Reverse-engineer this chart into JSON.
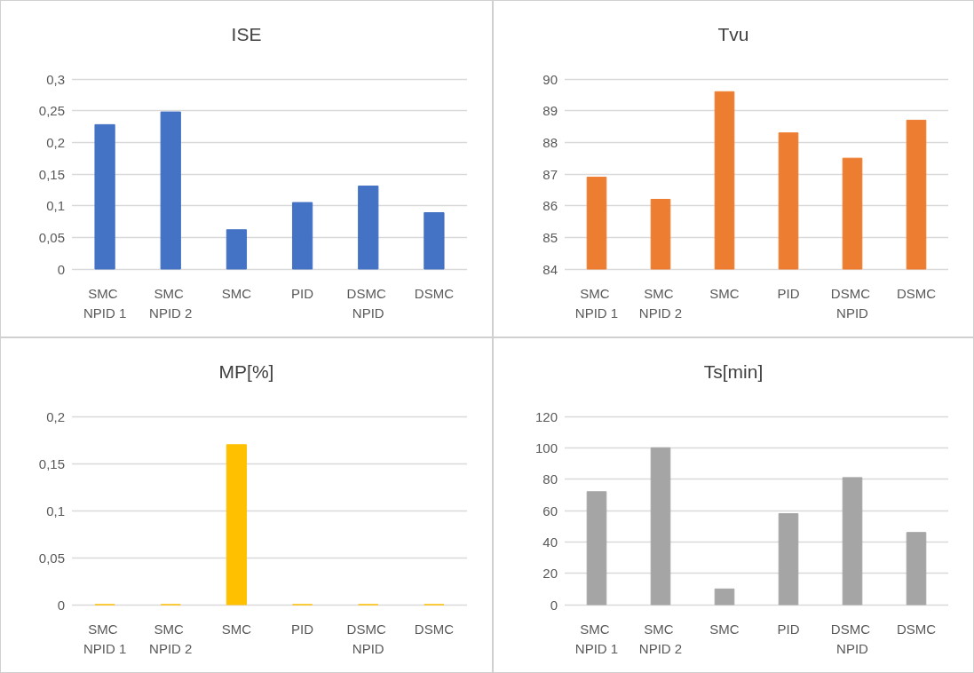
{
  "chart_data": [
    {
      "type": "bar",
      "title": "ISE",
      "categories": [
        "SMC NPID 1",
        "SMC NPID 2",
        "SMC",
        "PID",
        "DSMC NPID",
        "DSMC"
      ],
      "values": [
        0.228,
        0.248,
        0.062,
        0.105,
        0.131,
        0.089
      ],
      "color": "#4472c4",
      "ylim": [
        0,
        0.3
      ],
      "yticks": [
        0,
        {
          "value": 0.05,
          "label": "0,05"
        },
        {
          "value": 0.1,
          "label": "0,1"
        },
        {
          "value": 0.15,
          "label": "0,15"
        },
        {
          "value": 0.2,
          "label": "0,2"
        },
        {
          "value": 0.25,
          "label": "0,25"
        },
        {
          "value": 0.3,
          "label": "0,3"
        }
      ],
      "grid": "y"
    },
    {
      "type": "bar",
      "title": "Tvu",
      "categories": [
        "SMC NPID 1",
        "SMC NPID 2",
        "SMC",
        "PID",
        "DSMC NPID",
        "DSMC"
      ],
      "values": [
        86.9,
        86.2,
        89.6,
        88.3,
        87.5,
        88.7
      ],
      "color": "#ed7d31",
      "ylim": [
        84,
        90
      ],
      "yticks": [
        84,
        85,
        86,
        87,
        88,
        89,
        90
      ],
      "grid": "y"
    },
    {
      "type": "bar",
      "title": "MP[%]",
      "categories": [
        "SMC NPID 1",
        "SMC NPID 2",
        "SMC",
        "PID",
        "DSMC NPID",
        "DSMC"
      ],
      "values": [
        0,
        0,
        0.17,
        0,
        0,
        0
      ],
      "color": "#ffc000",
      "ylim": [
        0,
        0.2
      ],
      "yticks": [
        0,
        {
          "value": 0.05,
          "label": "0,05"
        },
        {
          "value": 0.1,
          "label": "0,1"
        },
        {
          "value": 0.15,
          "label": "0,15"
        },
        {
          "value": 0.2,
          "label": "0,2"
        }
      ],
      "grid": "y"
    },
    {
      "type": "bar",
      "title": "Ts[min]",
      "categories": [
        "SMC NPID 1",
        "SMC NPID 2",
        "SMC",
        "PID",
        "DSMC NPID",
        "DSMC"
      ],
      "values": [
        72,
        100,
        10,
        58,
        81,
        46
      ],
      "color": "#a5a5a5",
      "ylim": [
        0,
        120
      ],
      "yticks": [
        0,
        20,
        40,
        60,
        80,
        100,
        120
      ],
      "grid": "y"
    }
  ]
}
